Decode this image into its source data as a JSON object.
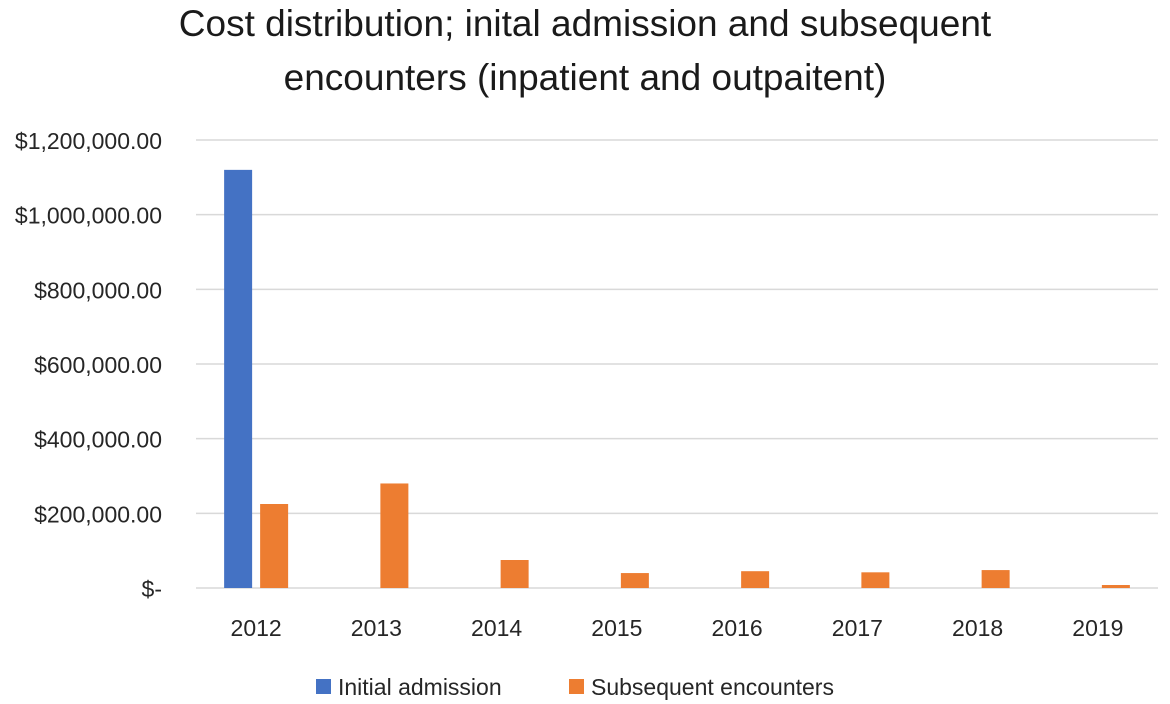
{
  "chart_data": {
    "type": "bar",
    "title_lines": [
      "Cost distribution; inital admission and subsequent",
      "encounters (inpatient and outpaitent)"
    ],
    "categories": [
      "2012",
      "2013",
      "2014",
      "2015",
      "2016",
      "2017",
      "2018",
      "2019"
    ],
    "series": [
      {
        "name": "Initial admission",
        "color": "#4472C4",
        "values": [
          1120000,
          0,
          0,
          0,
          0,
          0,
          0,
          0
        ]
      },
      {
        "name": "Subsequent encounters",
        "color": "#ED7D31",
        "values": [
          225000,
          280000,
          75000,
          40000,
          45000,
          42000,
          48000,
          8000
        ]
      }
    ],
    "y_ticks": [
      {
        "value": 0,
        "label": "$-"
      },
      {
        "value": 200000,
        "label": "$200,000.00"
      },
      {
        "value": 400000,
        "label": "$400,000.00"
      },
      {
        "value": 600000,
        "label": "$600,000.00"
      },
      {
        "value": 800000,
        "label": "$800,000.00"
      },
      {
        "value": 1000000,
        "label": "$1,000,000.00"
      },
      {
        "value": 1200000,
        "label": "$1,200,000.00"
      }
    ],
    "ylim": [
      0,
      1200000
    ],
    "xlabel": "",
    "ylabel": "",
    "grid": true,
    "legend_position": "bottom"
  }
}
